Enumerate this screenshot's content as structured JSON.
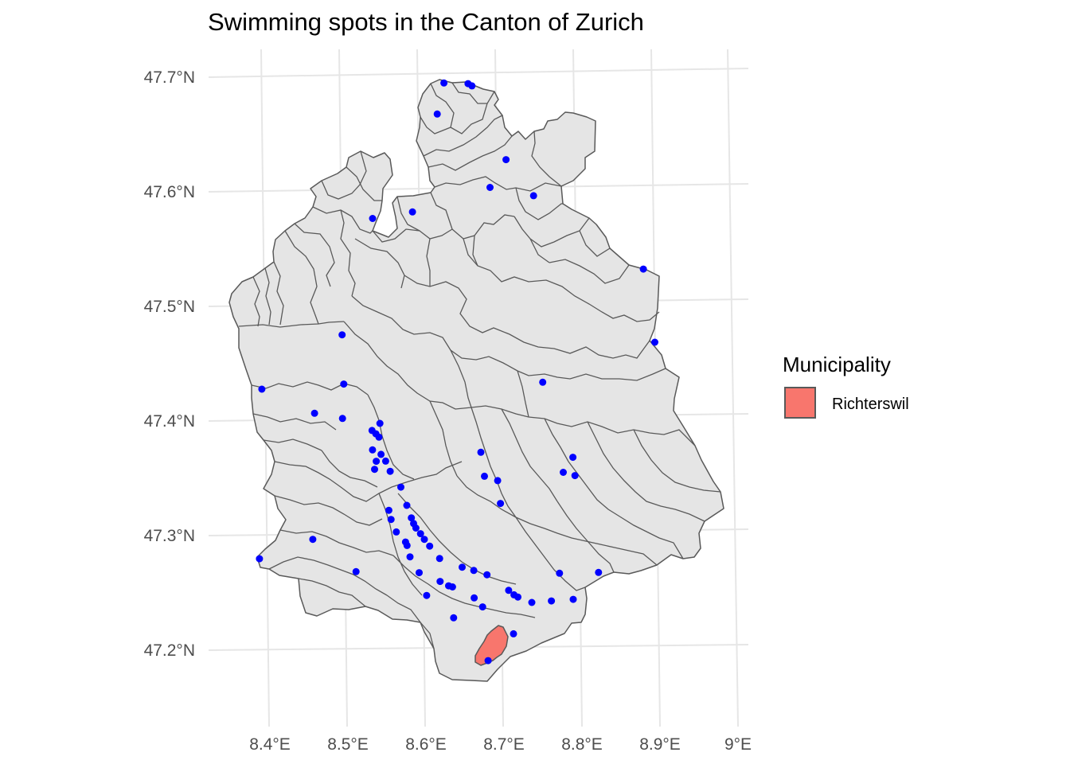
{
  "map": {
    "title": "Swimming spots in the Canton of Zurich",
    "y_ticks": [
      "47.7°N",
      "47.6°N",
      "47.5°N",
      "47.4°N",
      "47.3°N",
      "47.2°N"
    ],
    "x_ticks": [
      "8.4°E",
      "8.5°E",
      "8.6°E",
      "8.7°E",
      "8.8°E",
      "8.9°E",
      "9°E"
    ],
    "colors": {
      "background": "#ffffff",
      "grid": "#e6e6e6",
      "municipality_fill": "#e5e5e5",
      "municipality_border": "#595959",
      "highlight": "#f8766d",
      "points": "#0000ff"
    }
  },
  "legend": {
    "title": "Municipality",
    "items": [
      {
        "label": "Richterswil",
        "color": "#f8766d"
      }
    ]
  },
  "chart_data": {
    "type": "scatter",
    "title": "Swimming spots in the Canton of Zurich",
    "xlabel": "",
    "ylabel": "",
    "xlim": [
      8.36,
      9.01
    ],
    "ylim": [
      47.16,
      47.72
    ],
    "grid": true,
    "legend_position": "right",
    "highlighted_municipality": "Richterswil",
    "points": [
      {
        "lon": 8.613,
        "lat": 47.692
      },
      {
        "lon": 8.644,
        "lat": 47.691
      },
      {
        "lon": 8.649,
        "lat": 47.689
      },
      {
        "lon": 8.605,
        "lat": 47.665
      },
      {
        "lon": 8.694,
        "lat": 47.624
      },
      {
        "lon": 8.674,
        "lat": 47.6
      },
      {
        "lon": 8.73,
        "lat": 47.592
      },
      {
        "lon": 8.575,
        "lat": 47.58
      },
      {
        "lon": 8.524,
        "lat": 47.575
      },
      {
        "lon": 8.872,
        "lat": 47.526
      },
      {
        "lon": 8.487,
        "lat": 47.474
      },
      {
        "lon": 8.888,
        "lat": 47.462
      },
      {
        "lon": 8.49,
        "lat": 47.431
      },
      {
        "lon": 8.745,
        "lat": 47.429
      },
      {
        "lon": 8.385,
        "lat": 47.428
      },
      {
        "lon": 8.453,
        "lat": 47.406
      },
      {
        "lon": 8.489,
        "lat": 47.401
      },
      {
        "lon": 8.537,
        "lat": 47.396
      },
      {
        "lon": 8.527,
        "lat": 47.39
      },
      {
        "lon": 8.532,
        "lat": 47.387
      },
      {
        "lon": 8.536,
        "lat": 47.384
      },
      {
        "lon": 8.528,
        "lat": 47.373
      },
      {
        "lon": 8.539,
        "lat": 47.369
      },
      {
        "lon": 8.667,
        "lat": 47.369
      },
      {
        "lon": 8.533,
        "lat": 47.363
      },
      {
        "lon": 8.545,
        "lat": 47.363
      },
      {
        "lon": 8.785,
        "lat": 47.363
      },
      {
        "lon": 8.531,
        "lat": 47.356
      },
      {
        "lon": 8.551,
        "lat": 47.354
      },
      {
        "lon": 8.773,
        "lat": 47.35
      },
      {
        "lon": 8.672,
        "lat": 47.348
      },
      {
        "lon": 8.788,
        "lat": 47.347
      },
      {
        "lon": 8.689,
        "lat": 47.344
      },
      {
        "lon": 8.565,
        "lat": 47.34
      },
      {
        "lon": 8.693,
        "lat": 47.324
      },
      {
        "lon": 8.573,
        "lat": 47.324
      },
      {
        "lon": 8.55,
        "lat": 47.32
      },
      {
        "lon": 8.553,
        "lat": 47.312
      },
      {
        "lon": 8.579,
        "lat": 47.313
      },
      {
        "lon": 8.582,
        "lat": 47.308
      },
      {
        "lon": 8.585,
        "lat": 47.304
      },
      {
        "lon": 8.56,
        "lat": 47.301
      },
      {
        "lon": 8.591,
        "lat": 47.299
      },
      {
        "lon": 8.453,
        "lat": 47.296
      },
      {
        "lon": 8.596,
        "lat": 47.294
      },
      {
        "lon": 8.572,
        "lat": 47.292
      },
      {
        "lon": 8.574,
        "lat": 47.289
      },
      {
        "lon": 8.603,
        "lat": 47.288
      },
      {
        "lon": 8.385,
        "lat": 47.28
      },
      {
        "lon": 8.578,
        "lat": 47.279
      },
      {
        "lon": 8.616,
        "lat": 47.277
      },
      {
        "lon": 8.509,
        "lat": 47.267
      },
      {
        "lon": 8.645,
        "lat": 47.269
      },
      {
        "lon": 8.59,
        "lat": 47.265
      },
      {
        "lon": 8.66,
        "lat": 47.266
      },
      {
        "lon": 8.677,
        "lat": 47.262
      },
      {
        "lon": 8.77,
        "lat": 47.262
      },
      {
        "lon": 8.82,
        "lat": 47.262
      },
      {
        "lon": 8.617,
        "lat": 47.257
      },
      {
        "lon": 8.628,
        "lat": 47.253
      },
      {
        "lon": 8.633,
        "lat": 47.252
      },
      {
        "lon": 8.705,
        "lat": 47.248
      },
      {
        "lon": 8.712,
        "lat": 47.244
      },
      {
        "lon": 8.717,
        "lat": 47.242
      },
      {
        "lon": 8.6,
        "lat": 47.245
      },
      {
        "lon": 8.661,
        "lat": 47.242
      },
      {
        "lon": 8.735,
        "lat": 47.237
      },
      {
        "lon": 8.76,
        "lat": 47.238
      },
      {
        "lon": 8.788,
        "lat": 47.239
      },
      {
        "lon": 8.672,
        "lat": 47.234
      },
      {
        "lon": 8.635,
        "lat": 47.225
      },
      {
        "lon": 8.712,
        "lat": 47.21
      },
      {
        "lon": 8.68,
        "lat": 47.187
      }
    ]
  }
}
